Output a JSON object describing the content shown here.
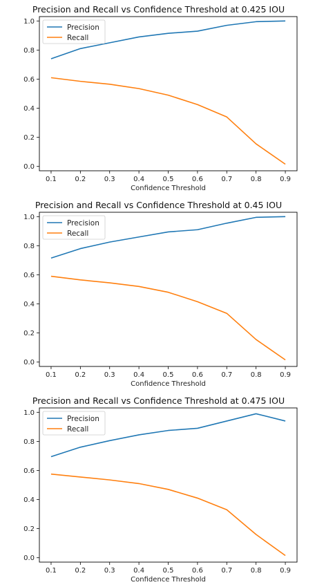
{
  "colors": {
    "precision": "#1f77b4",
    "recall": "#ff7f0e"
  },
  "chart_data": [
    {
      "type": "line",
      "title": "Precision and Recall vs Confidence Threshold at 0.425 IOU",
      "xlabel": "Confidence Threshold",
      "ylabel": "",
      "x": [
        0.1,
        0.2,
        0.3,
        0.4,
        0.5,
        0.6,
        0.7,
        0.8,
        0.9
      ],
      "x_ticks": [
        "0.1",
        "0.2",
        "0.3",
        "0.4",
        "0.5",
        "0.6",
        "0.7",
        "0.8",
        "0.9"
      ],
      "y_ticks": [
        "0.0",
        "0.2",
        "0.4",
        "0.6",
        "0.8",
        "1.0"
      ],
      "ylim": [
        -0.03,
        1.03
      ],
      "xlim": [
        0.06,
        0.94
      ],
      "legend": "top-left",
      "grid": false,
      "series": [
        {
          "name": "Precision",
          "color": "#1f77b4",
          "values": [
            0.74,
            0.81,
            0.85,
            0.89,
            0.915,
            0.93,
            0.97,
            0.995,
            1.0
          ]
        },
        {
          "name": "Recall",
          "color": "#ff7f0e",
          "values": [
            0.61,
            0.585,
            0.565,
            0.535,
            0.49,
            0.425,
            0.34,
            0.155,
            0.015
          ]
        }
      ]
    },
    {
      "type": "line",
      "title": "Precision and Recall vs Confidence Threshold at 0.45 IOU",
      "xlabel": "Confidence Threshold",
      "ylabel": "",
      "x": [
        0.1,
        0.2,
        0.3,
        0.4,
        0.5,
        0.6,
        0.7,
        0.8,
        0.9
      ],
      "x_ticks": [
        "0.1",
        "0.2",
        "0.3",
        "0.4",
        "0.5",
        "0.6",
        "0.7",
        "0.8",
        "0.9"
      ],
      "y_ticks": [
        "0.0",
        "0.2",
        "0.4",
        "0.6",
        "0.8",
        "1.0"
      ],
      "ylim": [
        -0.03,
        1.03
      ],
      "xlim": [
        0.06,
        0.94
      ],
      "legend": "top-left",
      "grid": false,
      "series": [
        {
          "name": "Precision",
          "color": "#1f77b4",
          "values": [
            0.715,
            0.78,
            0.825,
            0.86,
            0.895,
            0.91,
            0.955,
            0.995,
            1.0
          ]
        },
        {
          "name": "Recall",
          "color": "#ff7f0e",
          "values": [
            0.59,
            0.565,
            0.545,
            0.52,
            0.48,
            0.415,
            0.335,
            0.155,
            0.015
          ]
        }
      ]
    },
    {
      "type": "line",
      "title": "Precision and Recall vs Confidence Threshold at 0.475 IOU",
      "xlabel": "Confidence Threshold",
      "ylabel": "",
      "x": [
        0.1,
        0.2,
        0.3,
        0.4,
        0.5,
        0.6,
        0.7,
        0.8,
        0.9
      ],
      "x_ticks": [
        "0.1",
        "0.2",
        "0.3",
        "0.4",
        "0.5",
        "0.6",
        "0.7",
        "0.8",
        "0.9"
      ],
      "y_ticks": [
        "0.0",
        "0.2",
        "0.4",
        "0.6",
        "0.8",
        "1.0"
      ],
      "ylim": [
        -0.03,
        1.03
      ],
      "xlim": [
        0.06,
        0.94
      ],
      "legend": "top-left",
      "grid": false,
      "series": [
        {
          "name": "Precision",
          "color": "#1f77b4",
          "values": [
            0.695,
            0.76,
            0.805,
            0.845,
            0.875,
            0.89,
            0.94,
            0.99,
            0.94
          ]
        },
        {
          "name": "Recall",
          "color": "#ff7f0e",
          "values": [
            0.575,
            0.555,
            0.535,
            0.51,
            0.47,
            0.41,
            0.33,
            0.16,
            0.015
          ]
        }
      ]
    }
  ]
}
